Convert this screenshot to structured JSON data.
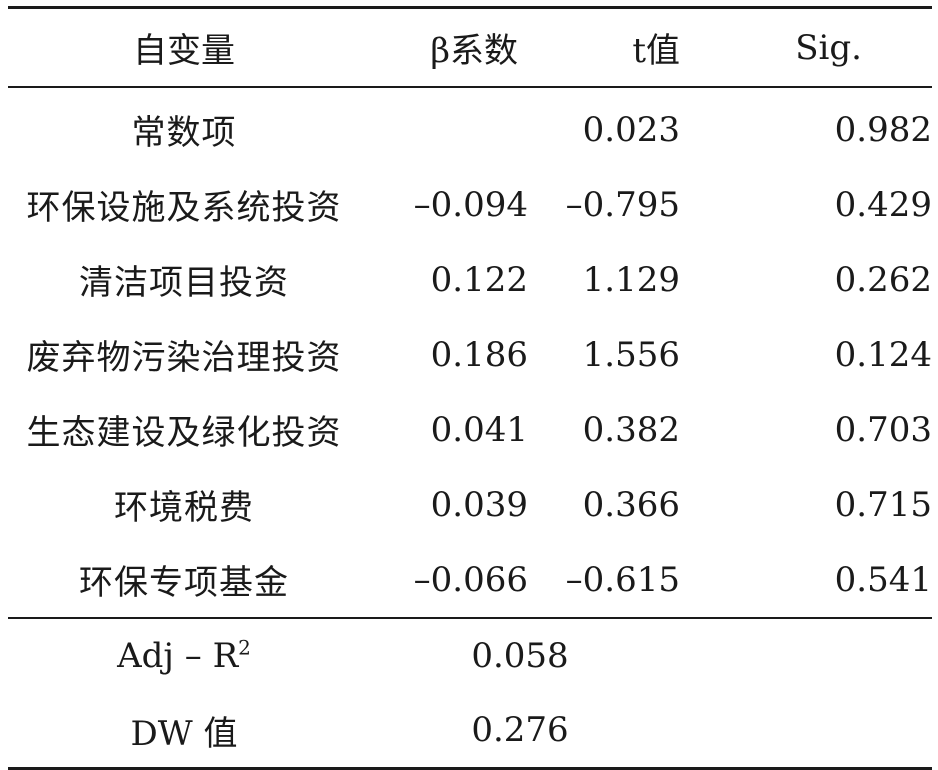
{
  "table": {
    "headers": [
      "自变量",
      "β系数",
      "t值",
      "Sig."
    ],
    "rows": [
      {
        "name": "常数项",
        "beta": "",
        "t": "0.023",
        "sig": "0.982"
      },
      {
        "name": "环保设施及系统投资",
        "beta": "–0.094",
        "t": "–0.795",
        "sig": "0.429"
      },
      {
        "name": "清洁项目投资",
        "beta": "0.122",
        "t": "1.129",
        "sig": "0.262"
      },
      {
        "name": "废弃物污染治理投资",
        "beta": "0.186",
        "t": "1.556",
        "sig": "0.124"
      },
      {
        "name": "生态建设及绿化投资",
        "beta": "0.041",
        "t": "0.382",
        "sig": "0.703"
      },
      {
        "name": "环境税费",
        "beta": "0.039",
        "t": "0.366",
        "sig": "0.715"
      },
      {
        "name": "环保专项基金",
        "beta": "–0.066",
        "t": "–0.615",
        "sig": "0.541"
      }
    ],
    "summary": [
      {
        "label": "Adj – R",
        "label_sup": "2",
        "value": "0.058"
      },
      {
        "label": "DW 值",
        "label_sup": "",
        "value": "0.276"
      }
    ]
  }
}
